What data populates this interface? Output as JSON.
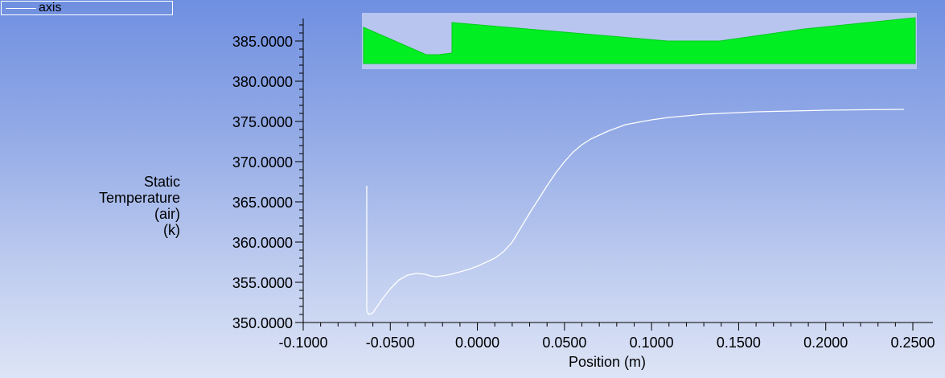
{
  "legend": {
    "label": "axis",
    "line_color": "#ffffff"
  },
  "chart_data": {
    "type": "line",
    "title": "",
    "xlabel": "Position (m)",
    "ylabel_lines": [
      "Static",
      "Temperature",
      "(air)",
      "(k)"
    ],
    "xlim": [
      -0.1,
      0.25
    ],
    "ylim": [
      350,
      388
    ],
    "x_ticks": [
      "-0.1000",
      "-0.0500",
      "0.0000",
      "0.0500",
      "0.1000",
      "0.1500",
      "0.2000",
      "0.2500"
    ],
    "y_ticks": [
      "350.0000",
      "355.0000",
      "360.0000",
      "365.0000",
      "370.0000",
      "375.0000",
      "380.0000",
      "385.0000"
    ],
    "grid": false,
    "series": [
      {
        "name": "axis",
        "color": "#ffffff",
        "x": [
          -0.0635,
          -0.0635,
          -0.0625,
          -0.06,
          -0.055,
          -0.05,
          -0.045,
          -0.04,
          -0.035,
          -0.03,
          -0.027,
          -0.024,
          -0.02,
          -0.015,
          -0.01,
          -0.005,
          0.0,
          0.005,
          0.01,
          0.015,
          0.02,
          0.025,
          0.03,
          0.035,
          0.04,
          0.045,
          0.05,
          0.055,
          0.06,
          0.065,
          0.07,
          0.075,
          0.08,
          0.085,
          0.09,
          0.095,
          0.1,
          0.11,
          0.12,
          0.13,
          0.14,
          0.15,
          0.16,
          0.18,
          0.2,
          0.22,
          0.245
        ],
        "y": [
          367.0,
          351.5,
          351.0,
          351.2,
          352.8,
          354.2,
          355.3,
          355.9,
          356.1,
          356.0,
          355.8,
          355.7,
          355.8,
          356.0,
          356.3,
          356.6,
          357.0,
          357.5,
          358.0,
          358.8,
          360.0,
          361.8,
          363.6,
          365.3,
          367.0,
          368.6,
          370.0,
          371.2,
          372.1,
          372.8,
          373.3,
          373.8,
          374.2,
          374.6,
          374.8,
          375.0,
          375.2,
          375.5,
          375.7,
          375.9,
          376.0,
          376.1,
          376.2,
          376.3,
          376.4,
          376.45,
          376.5
        ]
      }
    ],
    "inset": {
      "description": "geometry preview",
      "fill_color": "#00ee22",
      "background_color": "#b7c5ef"
    }
  }
}
